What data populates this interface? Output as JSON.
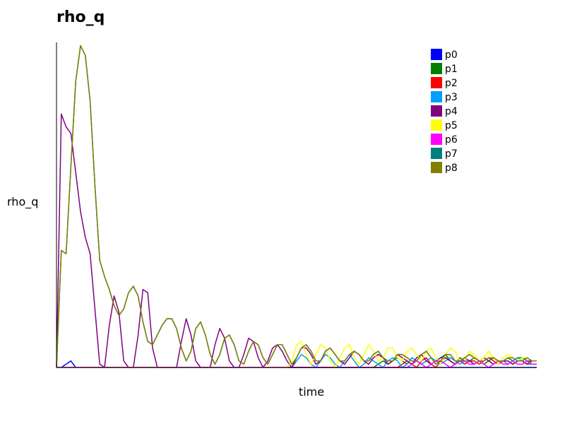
{
  "chart_data": {
    "type": "line",
    "title": "rho_q",
    "xlabel": "time",
    "ylabel": "rho_q",
    "xlim": [
      0,
      100
    ],
    "ylim": [
      0,
      1
    ],
    "grid": false,
    "legend_position": "top-right",
    "x": [
      0,
      1,
      2,
      3,
      4,
      5,
      6,
      7,
      8,
      9,
      10,
      11,
      12,
      13,
      14,
      15,
      16,
      17,
      18,
      19,
      20,
      21,
      22,
      23,
      24,
      25,
      26,
      27,
      28,
      29,
      30,
      31,
      32,
      33,
      34,
      35,
      36,
      37,
      38,
      39,
      40,
      41,
      42,
      43,
      44,
      45,
      46,
      47,
      48,
      49,
      50,
      51,
      52,
      53,
      54,
      55,
      56,
      57,
      58,
      59,
      60,
      61,
      62,
      63,
      64,
      65,
      66,
      67,
      68,
      69,
      70,
      71,
      72,
      73,
      74,
      75,
      76,
      77,
      78,
      79,
      80,
      81,
      82,
      83,
      84,
      85,
      86,
      87,
      88,
      89,
      90,
      91,
      92,
      93,
      94,
      95,
      96,
      97,
      98,
      99,
      100
    ],
    "series": [
      {
        "name": "p0",
        "color": "#0000ff",
        "values": [
          0,
          0,
          0.01,
          0.02,
          0,
          0,
          0,
          0,
          0,
          0,
          0,
          0,
          0,
          0,
          0,
          0,
          0,
          0,
          0,
          0,
          0,
          0,
          0,
          0,
          0,
          0,
          0,
          0,
          0,
          0,
          0,
          0,
          0,
          0,
          0,
          0,
          0,
          0,
          0,
          0,
          0,
          0,
          0,
          0,
          0,
          0,
          0,
          0,
          0,
          0,
          0,
          0,
          0,
          0,
          0,
          0,
          0,
          0,
          0,
          0,
          0,
          0,
          0,
          0,
          0,
          0,
          0,
          0,
          0,
          0,
          0,
          0,
          0,
          0,
          0,
          0,
          0,
          0,
          0,
          0,
          0,
          0,
          0,
          0,
          0,
          0,
          0,
          0,
          0,
          0,
          0,
          0,
          0,
          0,
          0,
          0,
          0,
          0,
          0,
          0,
          0
        ]
      },
      {
        "name": "p1",
        "color": "#008000",
        "values": [
          0,
          0,
          0,
          0,
          0,
          0,
          0,
          0,
          0,
          0,
          0,
          0,
          0,
          0,
          0,
          0,
          0,
          0,
          0,
          0,
          0,
          0,
          0,
          0,
          0,
          0,
          0,
          0,
          0,
          0,
          0,
          0,
          0,
          0,
          0,
          0,
          0,
          0,
          0,
          0,
          0,
          0,
          0,
          0,
          0,
          0,
          0,
          0,
          0,
          0,
          0,
          0,
          0,
          0,
          0,
          0,
          0,
          0,
          0,
          0,
          0,
          0,
          0,
          0,
          0,
          0,
          0,
          0.01,
          0.02,
          0.01,
          0.02,
          0.03,
          0.02,
          0.01,
          0.03,
          0.02,
          0.01,
          0.02,
          0.03,
          0.02,
          0.03,
          0.04,
          0.02,
          0.01,
          0.03,
          0.02,
          0.02,
          0.03,
          0.02,
          0.01,
          0.02,
          0.03,
          0.02,
          0.02,
          0.03,
          0.02,
          0.03,
          0.03,
          0.02,
          0.02,
          0.02
        ]
      },
      {
        "name": "p2",
        "color": "#ff0000",
        "values": [
          0,
          0,
          0,
          0,
          0,
          0,
          0,
          0,
          0,
          0,
          0,
          0,
          0,
          0,
          0,
          0,
          0,
          0,
          0,
          0,
          0,
          0,
          0,
          0,
          0,
          0,
          0,
          0,
          0,
          0,
          0,
          0,
          0,
          0,
          0,
          0,
          0,
          0,
          0,
          0,
          0,
          0,
          0,
          0,
          0,
          0,
          0,
          0,
          0,
          0,
          0,
          0,
          0,
          0,
          0,
          0,
          0,
          0,
          0,
          0,
          0,
          0,
          0,
          0,
          0,
          0,
          0,
          0,
          0,
          0,
          0,
          0,
          0.01,
          0.02,
          0.01,
          0,
          0.02,
          0.03,
          0.01,
          0,
          0.02,
          0.03,
          0.02,
          0.01,
          0.02,
          0.01,
          0.02,
          0.02,
          0.01,
          0.02,
          0.03,
          0.02,
          0.01,
          0.02,
          0.02,
          0.01,
          0.02,
          0.02,
          0.01,
          0.02,
          0.02
        ]
      },
      {
        "name": "p3",
        "color": "#00a0ff",
        "values": [
          0,
          0,
          0,
          0,
          0,
          0,
          0,
          0,
          0,
          0,
          0,
          0,
          0,
          0,
          0,
          0,
          0,
          0,
          0,
          0,
          0,
          0,
          0,
          0,
          0,
          0,
          0,
          0,
          0,
          0,
          0,
          0,
          0,
          0,
          0,
          0,
          0,
          0,
          0,
          0,
          0,
          0,
          0,
          0,
          0,
          0,
          0,
          0,
          0,
          0,
          0.02,
          0.04,
          0.03,
          0.01,
          0,
          0.02,
          0.04,
          0.03,
          0.01,
          0,
          0.02,
          0.04,
          0.02,
          0,
          0.01,
          0.03,
          0.02,
          0.01,
          0,
          0.02,
          0.03,
          0.02,
          0,
          0.01,
          0.03,
          0.02,
          0.01,
          0.02,
          0.03,
          0.02,
          0.01,
          0.02,
          0.03,
          0.02,
          0.01,
          0.02,
          0.02,
          0.01,
          0.02,
          0.03,
          0.02,
          0.01,
          0.02,
          0.02,
          0.01,
          0.02,
          0.03,
          0.02,
          0.01,
          0.01,
          0.01
        ]
      },
      {
        "name": "p4",
        "color": "#800080",
        "values": [
          0,
          0.78,
          0.74,
          0.72,
          0.6,
          0.48,
          0.4,
          0.35,
          0.18,
          0.01,
          0,
          0.13,
          0.22,
          0.17,
          0.02,
          0,
          0,
          0.1,
          0.24,
          0.23,
          0.06,
          0,
          0,
          0,
          0,
          0,
          0.08,
          0.15,
          0.1,
          0.02,
          0,
          0,
          0,
          0.07,
          0.12,
          0.09,
          0.02,
          0,
          0,
          0.04,
          0.09,
          0.08,
          0.03,
          0,
          0.02,
          0.06,
          0.07,
          0.05,
          0.02,
          0,
          0.03,
          0.06,
          0.06,
          0.04,
          0.01,
          0.02,
          0.05,
          0.06,
          0.04,
          0.02,
          0.01,
          0.03,
          0.05,
          0.04,
          0.02,
          0.01,
          0.03,
          0.04,
          0.03,
          0.01,
          0.02,
          0.04,
          0.03,
          0.02,
          0.01,
          0.03,
          0.04,
          0.02,
          0.01,
          0.02,
          0.03,
          0.03,
          0.02,
          0.01,
          0.02,
          0.03,
          0.02,
          0.01,
          0.02,
          0.03,
          0.02,
          0.01,
          0.02,
          0.02,
          0.02,
          0.01,
          0.02,
          0.02,
          0.01,
          0.02,
          0.02
        ]
      },
      {
        "name": "p5",
        "color": "#ffff00",
        "values": [
          0,
          0,
          0,
          0,
          0,
          0,
          0,
          0,
          0,
          0,
          0,
          0,
          0,
          0,
          0,
          0,
          0,
          0,
          0,
          0,
          0,
          0,
          0,
          0,
          0,
          0,
          0,
          0,
          0,
          0,
          0,
          0,
          0,
          0,
          0,
          0,
          0,
          0,
          0,
          0,
          0,
          0,
          0,
          0,
          0,
          0,
          0,
          0,
          0,
          0.02,
          0.07,
          0.08,
          0.04,
          0.01,
          0.04,
          0.07,
          0.06,
          0.02,
          0,
          0.03,
          0.06,
          0.07,
          0.03,
          0.01,
          0.04,
          0.07,
          0.05,
          0.02,
          0.03,
          0.06,
          0.06,
          0.03,
          0.02,
          0.05,
          0.06,
          0.04,
          0.02,
          0.05,
          0.06,
          0.03,
          0.01,
          0.04,
          0.06,
          0.05,
          0.02,
          0.02,
          0.05,
          0.04,
          0.02,
          0.03,
          0.05,
          0.03,
          0.01,
          0.03,
          0.04,
          0.03,
          0.02,
          0.03,
          0.03,
          0.02,
          0.02
        ]
      },
      {
        "name": "p6",
        "color": "#ff00ff",
        "values": [
          0,
          0,
          0,
          0,
          0,
          0,
          0,
          0,
          0,
          0,
          0,
          0,
          0,
          0,
          0,
          0,
          0,
          0,
          0,
          0,
          0,
          0,
          0,
          0,
          0,
          0,
          0,
          0,
          0,
          0,
          0,
          0,
          0,
          0,
          0,
          0,
          0,
          0,
          0,
          0,
          0,
          0,
          0,
          0,
          0,
          0,
          0,
          0,
          0,
          0,
          0,
          0,
          0,
          0,
          0,
          0,
          0,
          0,
          0,
          0,
          0,
          0,
          0,
          0,
          0,
          0,
          0,
          0,
          0,
          0,
          0,
          0,
          0,
          0,
          0.01,
          0.02,
          0.01,
          0,
          0.01,
          0.02,
          0.02,
          0.01,
          0,
          0.01,
          0.02,
          0.02,
          0.01,
          0.01,
          0.02,
          0.01,
          0,
          0.01,
          0.02,
          0.01,
          0.01,
          0.02,
          0.01,
          0.01,
          0.02,
          0.01,
          0.01
        ]
      },
      {
        "name": "p7",
        "color": "#008080",
        "values": [
          0,
          0.36,
          0.35,
          0.62,
          0.88,
          0.99,
          0.96,
          0.82,
          0.56,
          0.33,
          0.28,
          0.24,
          0.19,
          0.16,
          0.18,
          0.23,
          0.25,
          0.22,
          0.14,
          0.08,
          0.07,
          0.1,
          0.13,
          0.15,
          0.15,
          0.12,
          0.06,
          0.02,
          0.05,
          0.12,
          0.14,
          0.1,
          0.04,
          0.01,
          0.04,
          0.09,
          0.1,
          0.07,
          0.02,
          0.01,
          0.05,
          0.08,
          0.07,
          0.03,
          0.01,
          0.04,
          0.07,
          0.07,
          0.04,
          0.01,
          0.03,
          0.06,
          0.07,
          0.05,
          0.02,
          0.02,
          0.05,
          0.06,
          0.04,
          0.02,
          0.02,
          0.04,
          0.05,
          0.04,
          0.02,
          0.02,
          0.04,
          0.05,
          0.03,
          0.02,
          0.02,
          0.04,
          0.04,
          0.03,
          0.02,
          0.02,
          0.04,
          0.05,
          0.03,
          0.01,
          0.02,
          0.04,
          0.04,
          0.02,
          0.02,
          0.03,
          0.04,
          0.03,
          0.02,
          0.02,
          0.03,
          0.03,
          0.02,
          0.02,
          0.03,
          0.03,
          0.02,
          0.02,
          0.03,
          0.02,
          0.02
        ]
      },
      {
        "name": "p8",
        "color": "#808000",
        "values": [
          0,
          0.36,
          0.35,
          0.62,
          0.88,
          0.99,
          0.96,
          0.82,
          0.56,
          0.33,
          0.28,
          0.24,
          0.19,
          0.16,
          0.18,
          0.23,
          0.25,
          0.22,
          0.14,
          0.08,
          0.07,
          0.1,
          0.13,
          0.15,
          0.15,
          0.12,
          0.06,
          0.02,
          0.05,
          0.12,
          0.14,
          0.1,
          0.04,
          0.01,
          0.04,
          0.09,
          0.1,
          0.07,
          0.02,
          0.01,
          0.05,
          0.08,
          0.07,
          0.03,
          0.01,
          0.04,
          0.07,
          0.07,
          0.04,
          0.01,
          0.03,
          0.06,
          0.07,
          0.05,
          0.02,
          0.02,
          0.05,
          0.06,
          0.04,
          0.02,
          0.02,
          0.04,
          0.05,
          0.04,
          0.02,
          0.02,
          0.04,
          0.05,
          0.03,
          0.02,
          0.02,
          0.04,
          0.04,
          0.03,
          0.02,
          0.02,
          0.04,
          0.05,
          0.03,
          0.01,
          0.02,
          0.04,
          0.04,
          0.02,
          0.02,
          0.03,
          0.04,
          0.03,
          0.02,
          0.02,
          0.03,
          0.03,
          0.02,
          0.02,
          0.03,
          0.03,
          0.02,
          0.02,
          0.03,
          0.02,
          0.02
        ]
      }
    ]
  }
}
